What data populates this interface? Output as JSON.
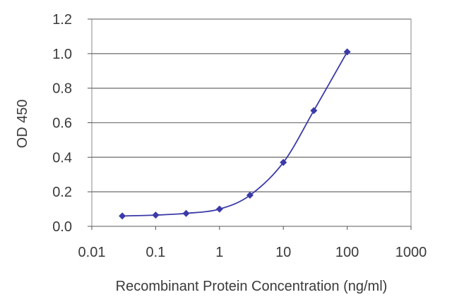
{
  "chart_data": {
    "type": "line",
    "title": "",
    "xlabel": "Recombinant Protein Concentration (ng/ml)",
    "ylabel": "OD 450",
    "xscale": "log",
    "xlim": [
      0.01,
      1000
    ],
    "ylim": [
      0.0,
      1.2
    ],
    "x_ticks": [
      "0.01",
      "0.1",
      "1",
      "10",
      "100",
      "1000"
    ],
    "y_ticks": [
      "0.0",
      "0.2",
      "0.4",
      "0.6",
      "0.8",
      "1.0",
      "1.2"
    ],
    "grid": "horizontal",
    "series": [
      {
        "color": "#3a3aa8",
        "x": [
          0.03,
          0.1,
          0.3,
          1,
          3,
          10,
          30,
          100
        ],
        "y": [
          0.06,
          0.065,
          0.075,
          0.1,
          0.18,
          0.37,
          0.67,
          1.01
        ]
      }
    ]
  }
}
